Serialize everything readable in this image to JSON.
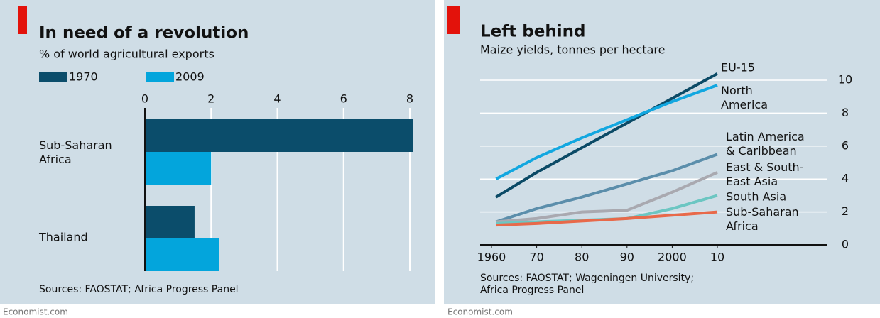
{
  "chart_data": [
    {
      "type": "bar",
      "title": "In need of a revolution",
      "subtitle": "% of world agricultural exports",
      "categories": [
        "Sub-Saharan\nAfrica",
        "Thailand"
      ],
      "series": [
        {
          "name": "1970",
          "color": "#0b4d6b",
          "values": [
            8.1,
            1.5
          ]
        },
        {
          "name": "2009",
          "color": "#03a5dc",
          "values": [
            2.0,
            2.25
          ]
        }
      ],
      "xlim": [
        0,
        8.4
      ],
      "xticks": [
        0,
        2,
        4,
        6,
        8
      ],
      "grid": true,
      "source": "Sources: FAOSTAT; Africa Progress Panel",
      "footer": "Economist.com"
    },
    {
      "type": "line",
      "title": "Left behind",
      "subtitle": "Maize yields, tonnes per hectare",
      "x": [
        1961,
        1970,
        1980,
        1990,
        2000,
        2010
      ],
      "series": [
        {
          "name": "EU-15",
          "color": "#0b4a66",
          "values": [
            2.9,
            4.4,
            5.9,
            7.4,
            8.9,
            10.4
          ]
        },
        {
          "name": "North\nAmerica",
          "color": "#12a7e0",
          "values": [
            4.0,
            5.3,
            6.5,
            7.6,
            8.7,
            9.7
          ]
        },
        {
          "name": "Latin America\n& Caribbean",
          "color": "#5b8eab",
          "values": [
            1.4,
            2.2,
            2.9,
            3.7,
            4.5,
            5.5
          ]
        },
        {
          "name": "East & South-\nEast Asia",
          "color": "#a9a9b0",
          "values": [
            1.4,
            1.6,
            2.0,
            2.1,
            3.2,
            4.4
          ]
        },
        {
          "name": "South Asia",
          "color": "#6cc6c2",
          "values": [
            1.3,
            1.4,
            1.5,
            1.6,
            2.2,
            3.0
          ]
        },
        {
          "name": "Sub-Saharan\nAfrica",
          "color": "#e8694a",
          "values": [
            1.2,
            1.3,
            1.45,
            1.6,
            1.8,
            2.0
          ]
        }
      ],
      "xlim": [
        1960,
        2010
      ],
      "xticks": [
        1960,
        {
          "value": 1970,
          "label": "70"
        },
        {
          "value": 1980,
          "label": "80"
        },
        {
          "value": 1990,
          "label": "90"
        },
        2000,
        {
          "value": 2010,
          "label": "10"
        }
      ],
      "ylim": [
        0,
        10
      ],
      "yticks": [
        0,
        2,
        4,
        6,
        8,
        10
      ],
      "grid": true,
      "source": "Sources: FAOSTAT; Wageningen University;\nAfrica Progress Panel",
      "footer": "Economist.com"
    }
  ]
}
